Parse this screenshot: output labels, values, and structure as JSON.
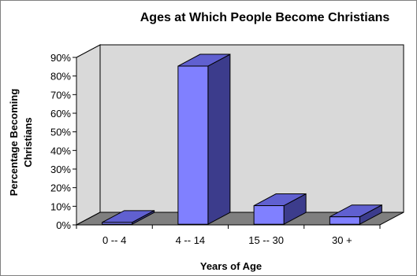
{
  "chart_data": {
    "type": "bar",
    "title": "Ages at Which People Become Christians",
    "xlabel": "Years of Age",
    "ylabel_lines": [
      "Percentage Becoming",
      "Christians"
    ],
    "categories": [
      "0 -- 4",
      "4 -- 14",
      "15 -- 30",
      "30 +"
    ],
    "values": [
      1,
      85,
      10,
      4
    ],
    "ylim": [
      0,
      90
    ],
    "yticks": [
      "0%",
      "10%",
      "20%",
      "30%",
      "40%",
      "50%",
      "60%",
      "70%",
      "80%",
      "90%"
    ],
    "grid": false,
    "legend": "none",
    "style": "3d",
    "colors": {
      "bar_front": "#8080ff",
      "bar_top": "#6060d0",
      "bar_side": "#3c3c8c",
      "wall": "#d9d9d9",
      "floor": "#7f7f7f",
      "edge": "#000000"
    }
  }
}
